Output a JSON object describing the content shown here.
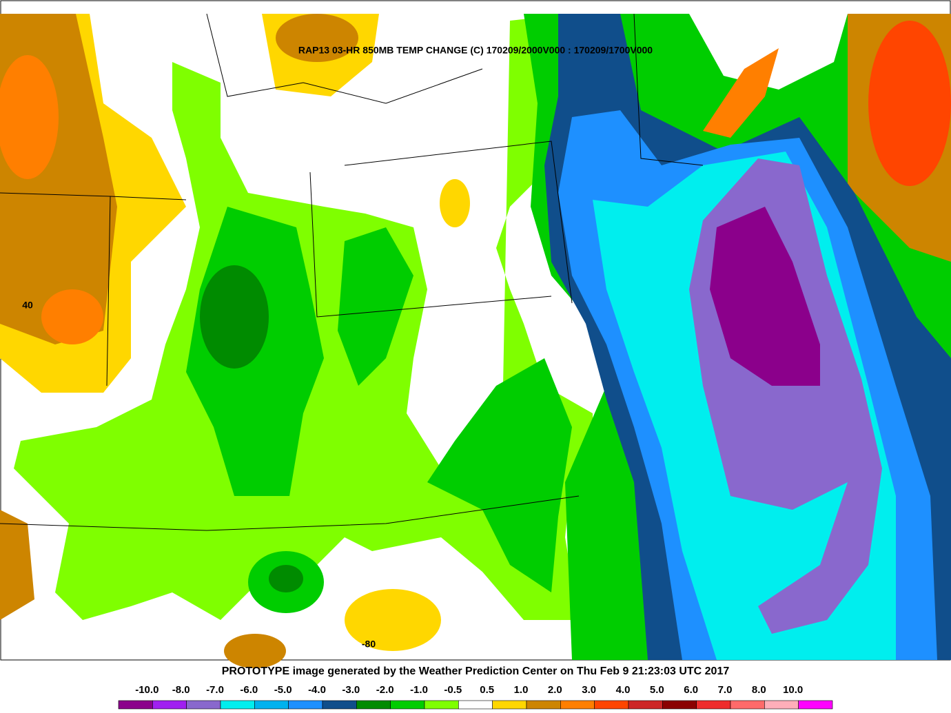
{
  "header": {
    "title": "RAP13 03-HR 850MB TEMP CHANGE (C) 170209/2000V000 : 170209/1700V000"
  },
  "map_labels": [
    "40",
    "-80"
  ],
  "footer": {
    "text": "PROTOTYPE image generated by the Weather Prediction Center on Thu Feb 9 21:23:03 UTC 2017"
  },
  "colorbar": {
    "labels": [
      "-10.0",
      "-8.0",
      "-7.0",
      "-6.0",
      "-5.0",
      "-4.0",
      "-3.0",
      "-2.0",
      "-1.0",
      "-0.5",
      "0.5",
      "1.0",
      "2.0",
      "3.0",
      "4.0",
      "5.0",
      "6.0",
      "7.0",
      "8.0",
      "10.0"
    ],
    "colors": [
      "#8b008b",
      "#a020f0",
      "#8968cd",
      "#00eeee",
      "#00b2ee",
      "#1e90ff",
      "#104e8b",
      "#008b00",
      "#00cd00",
      "#7fff00",
      "#ffffff",
      "#ffd700",
      "#cd8500",
      "#ff7f00",
      "#ff4500",
      "#cd2626",
      "#8b0000",
      "#ee2c2c",
      "#ff6a6a",
      "#ffaeb9",
      "#ff00ff"
    ]
  }
}
